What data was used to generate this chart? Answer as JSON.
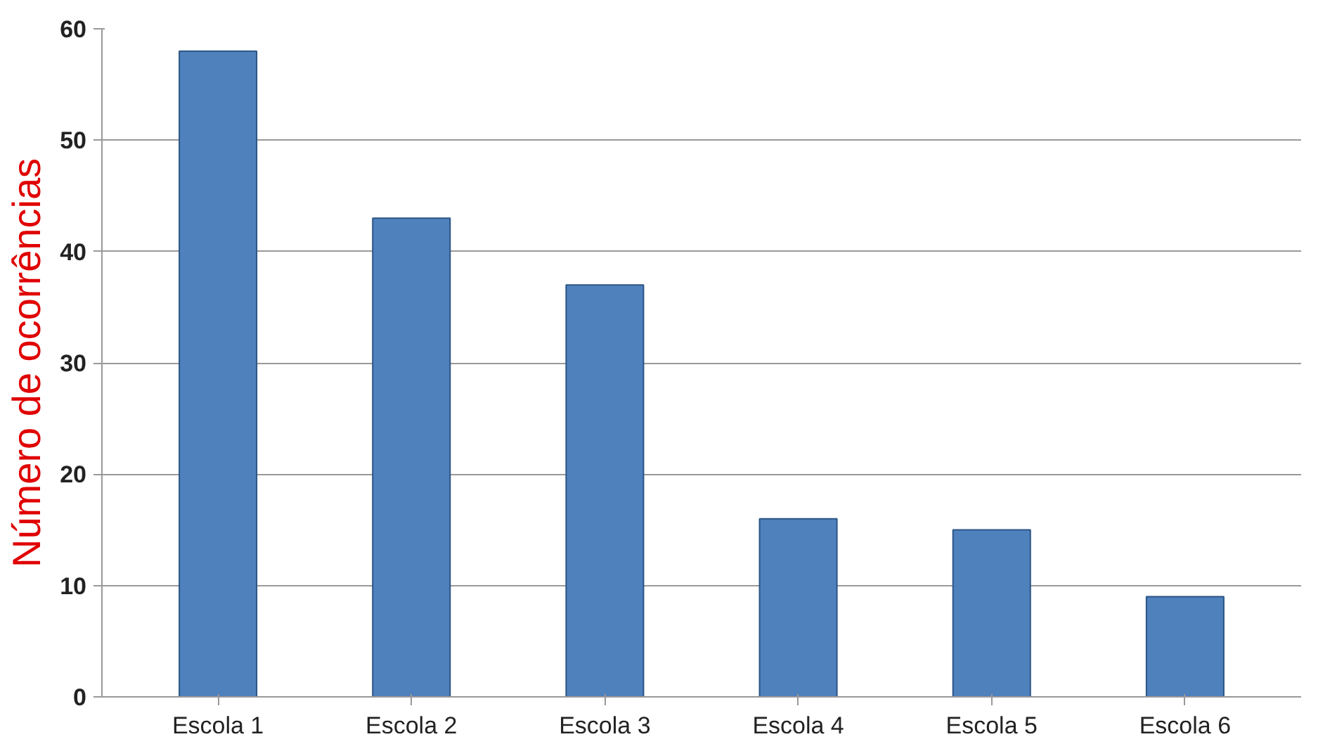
{
  "chart_data": {
    "type": "bar",
    "ylabel": "Número de ocorrências",
    "categories": [
      "Escola 1",
      "Escola 2",
      "Escola 3",
      "Escola 4",
      "Escola 5",
      "Escola 6"
    ],
    "values": [
      58,
      43,
      37,
      16,
      15,
      9
    ],
    "color": "#4f81bd",
    "ylim": [
      0,
      60
    ],
    "yticks": [
      0,
      10,
      20,
      30,
      40,
      50,
      60
    ],
    "grid": "y"
  }
}
